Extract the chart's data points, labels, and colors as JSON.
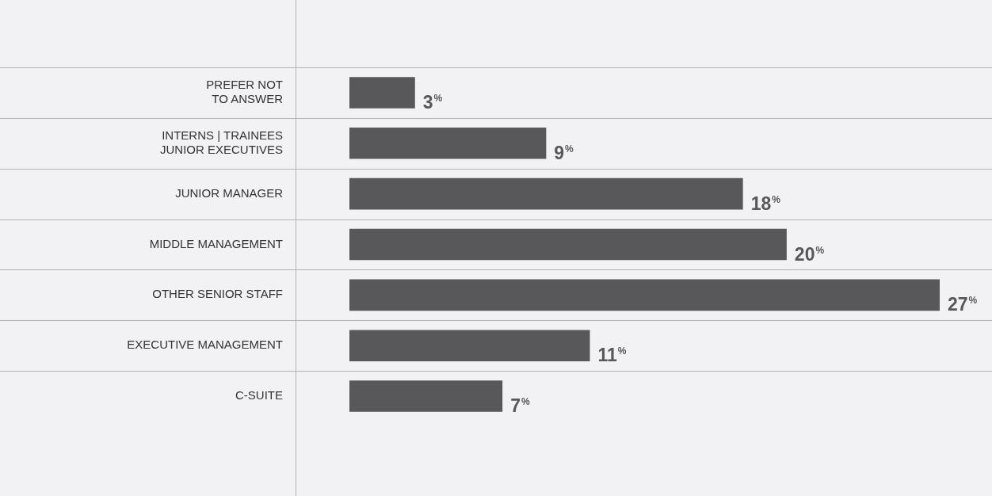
{
  "chart_data": {
    "type": "bar",
    "orientation": "horizontal",
    "categories": [
      "PREFER NOT\nTO ANSWER",
      "INTERNS | TRAINEES\nJUNIOR EXECUTIVES",
      "JUNIOR MANAGER",
      "MIDDLE MANAGEMENT",
      "OTHER SENIOR STAFF",
      "EXECUTIVE MANAGEMENT",
      "C-SUITE"
    ],
    "values": [
      3,
      9,
      18,
      20,
      27,
      11,
      7
    ],
    "value_labels": [
      "3%",
      "9%",
      "18%",
      "20%",
      "27%",
      "11%",
      "7%"
    ],
    "color": "#58585a",
    "grid": "y",
    "legend": false
  }
}
